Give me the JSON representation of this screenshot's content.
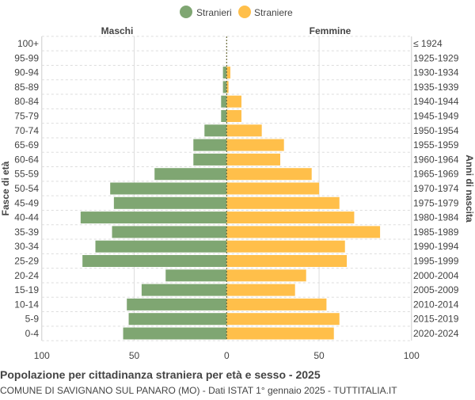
{
  "chart_data": {
    "type": "bar",
    "orientation": "horizontal-pyramid",
    "title": "Popolazione per cittadinanza straniera per età e sesso - 2025",
    "subtitle": "COMUNE DI SAVIGNANO SUL PANARO (MO) - Dati ISTAT 1° gennaio 2025 - TUTTITALIA.IT",
    "left_label": "Maschi",
    "right_label": "Femmine",
    "ylabel_left": "Fasce di età",
    "ylabel_right": "Anni di nascita",
    "xlim": [
      -100,
      100
    ],
    "x_ticks": [
      "100",
      "50",
      "0",
      "50",
      "100"
    ],
    "grid": true,
    "legend_position": "top",
    "categories": [
      "100+",
      "95-99",
      "90-94",
      "85-89",
      "80-84",
      "75-79",
      "70-74",
      "65-69",
      "60-64",
      "55-59",
      "50-54",
      "45-49",
      "40-44",
      "35-39",
      "30-34",
      "25-29",
      "20-24",
      "15-19",
      "10-14",
      "5-9",
      "0-4"
    ],
    "birth_years": [
      "≤ 1924",
      "1925-1929",
      "1930-1934",
      "1935-1939",
      "1940-1944",
      "1945-1949",
      "1950-1954",
      "1955-1959",
      "1960-1964",
      "1965-1969",
      "1970-1974",
      "1975-1979",
      "1980-1984",
      "1985-1989",
      "1990-1994",
      "1995-1999",
      "2000-2004",
      "2005-2009",
      "2010-2014",
      "2015-2019",
      "2020-2024"
    ],
    "series": [
      {
        "name": "Stranieri",
        "color": "#7fa672",
        "values": [
          0,
          0,
          2,
          2,
          3,
          3,
          12,
          18,
          18,
          39,
          63,
          61,
          79,
          62,
          71,
          78,
          33,
          46,
          54,
          53,
          56
        ]
      },
      {
        "name": "Straniere",
        "color": "#ffbf4a",
        "values": [
          0,
          0,
          2,
          1,
          8,
          8,
          19,
          31,
          29,
          46,
          50,
          61,
          69,
          83,
          64,
          65,
          43,
          37,
          54,
          61,
          58
        ]
      }
    ]
  }
}
